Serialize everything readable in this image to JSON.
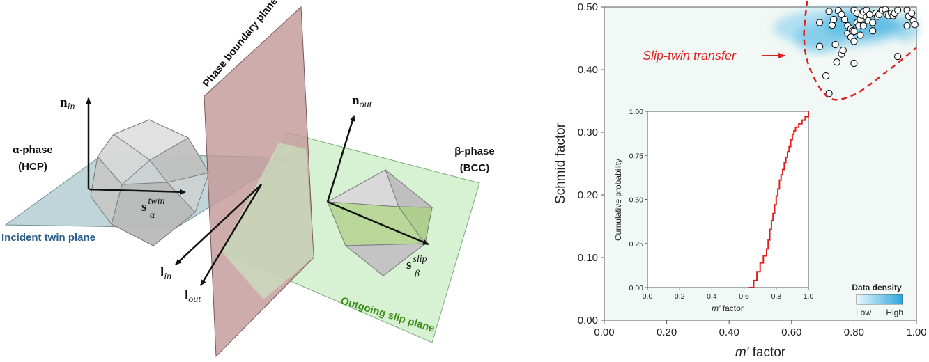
{
  "schematic": {
    "phase_boundary_label": "Phase boundary plane",
    "alpha_phase": {
      "name": "α-phase",
      "structure": "(HCP)"
    },
    "beta_phase": {
      "name": "β-phase",
      "structure": "(BCC)"
    },
    "incident_plane_label": "Incident twin plane",
    "outgoing_plane_label": "Outgoing slip plane",
    "vectors": {
      "n_in": {
        "base": "n",
        "sub": "in"
      },
      "n_out": {
        "base": "n",
        "sub": "out"
      },
      "s_twin": {
        "base": "s",
        "sub": "α",
        "sup": "twin"
      },
      "s_slip": {
        "base": "s",
        "sub": "β",
        "sup": "slip"
      },
      "l_in": {
        "base": "l",
        "sub": "in"
      },
      "l_out": {
        "base": "l",
        "sub": "out"
      }
    },
    "colors": {
      "phase_boundary": "#c49a9a",
      "incident_plane": "#a9c7cc",
      "outgoing_plane": "#c9ecc4",
      "incident_text": "#2a5d8a",
      "outgoing_text": "#3e8e1c"
    }
  },
  "chart_data": [
    {
      "type": "scatter",
      "xlabel_italic": "m'",
      "xlabel_rest": " factor",
      "ylabel": "Schmid factor",
      "xlim": [
        0,
        1
      ],
      "ylim": [
        0,
        0.5
      ],
      "xticks": [
        "0.00",
        "0.20",
        "0.40",
        "0.60",
        "0.80",
        "1.00"
      ],
      "yticks": [
        "0.00",
        "0.10",
        "0.20",
        "0.30",
        "0.40",
        "0.50"
      ],
      "grid": false,
      "annotation": "Slip-twin transfer",
      "annotation_color": "#e02020",
      "legend": {
        "title": "Data density",
        "low": "Low",
        "high": "High",
        "low_color": "#eaf6fc",
        "high_color": "#2aa6dc",
        "position": "bottom-right"
      },
      "points": [
        [
          0.69,
          0.475
        ],
        [
          0.72,
          0.493
        ],
        [
          0.73,
          0.471
        ],
        [
          0.735,
          0.48
        ],
        [
          0.75,
          0.494
        ],
        [
          0.76,
          0.488
        ],
        [
          0.77,
          0.48
        ],
        [
          0.78,
          0.47
        ],
        [
          0.78,
          0.458
        ],
        [
          0.79,
          0.465
        ],
        [
          0.79,
          0.452
        ],
        [
          0.795,
          0.462
        ],
        [
          0.8,
          0.461
        ],
        [
          0.8,
          0.445
        ],
        [
          0.8,
          0.495
        ],
        [
          0.81,
          0.49
        ],
        [
          0.81,
          0.475
        ],
        [
          0.815,
          0.47
        ],
        [
          0.82,
          0.48
        ],
        [
          0.82,
          0.455
        ],
        [
          0.825,
          0.487
        ],
        [
          0.83,
          0.492
        ],
        [
          0.83,
          0.47
        ],
        [
          0.84,
          0.495
        ],
        [
          0.84,
          0.484
        ],
        [
          0.845,
          0.478
        ],
        [
          0.85,
          0.488
        ],
        [
          0.86,
          0.475
        ],
        [
          0.86,
          0.462
        ],
        [
          0.87,
          0.49
        ],
        [
          0.875,
          0.485
        ],
        [
          0.88,
          0.488
        ],
        [
          0.89,
          0.495
        ],
        [
          0.9,
          0.496
        ],
        [
          0.905,
          0.488
        ],
        [
          0.91,
          0.486
        ],
        [
          0.92,
          0.49
        ],
        [
          0.925,
          0.486
        ],
        [
          0.93,
          0.49
        ],
        [
          0.94,
          0.495
        ],
        [
          0.97,
          0.495
        ],
        [
          0.975,
          0.485
        ],
        [
          0.985,
          0.49
        ],
        [
          0.99,
          0.478
        ],
        [
          0.995,
          0.472
        ],
        [
          0.97,
          0.47
        ],
        [
          0.74,
          0.44
        ],
        [
          0.76,
          0.425
        ],
        [
          0.69,
          0.437
        ],
        [
          0.745,
          0.412
        ],
        [
          0.8,
          0.41
        ],
        [
          0.765,
          0.431
        ],
        [
          0.71,
          0.39
        ],
        [
          0.72,
          0.362
        ],
        [
          0.94,
          0.421
        ]
      ],
      "boundary_curve": [
        [
          0.65,
          0.51
        ],
        [
          0.64,
          0.45
        ],
        [
          0.66,
          0.4
        ],
        [
          0.72,
          0.355
        ],
        [
          0.8,
          0.36
        ],
        [
          0.9,
          0.395
        ],
        [
          1.0,
          0.435
        ]
      ]
    },
    {
      "type": "line",
      "step": true,
      "xlabel_italic": "m'",
      "xlabel_rest": " factor",
      "ylabel": "Cumulative probability",
      "xlim": [
        0,
        1
      ],
      "ylim": [
        0,
        1
      ],
      "xticks": [
        "0.0",
        "0.2",
        "0.4",
        "0.6",
        "0.8",
        "1.0"
      ],
      "yticks": [
        "0.00",
        "0.25",
        "0.50",
        "0.75",
        "1.00"
      ],
      "line_color": "#e02020",
      "x": [
        0.63,
        0.66,
        0.68,
        0.7,
        0.72,
        0.74,
        0.75,
        0.76,
        0.77,
        0.78,
        0.79,
        0.8,
        0.81,
        0.82,
        0.83,
        0.84,
        0.85,
        0.86,
        0.87,
        0.88,
        0.89,
        0.9,
        0.91,
        0.92,
        0.94,
        0.96,
        0.98,
        1.0
      ],
      "y": [
        0.0,
        0.04,
        0.09,
        0.14,
        0.18,
        0.22,
        0.27,
        0.33,
        0.38,
        0.42,
        0.47,
        0.52,
        0.56,
        0.61,
        0.64,
        0.67,
        0.71,
        0.74,
        0.77,
        0.8,
        0.84,
        0.87,
        0.89,
        0.91,
        0.93,
        0.95,
        0.97,
        1.0
      ]
    }
  ]
}
